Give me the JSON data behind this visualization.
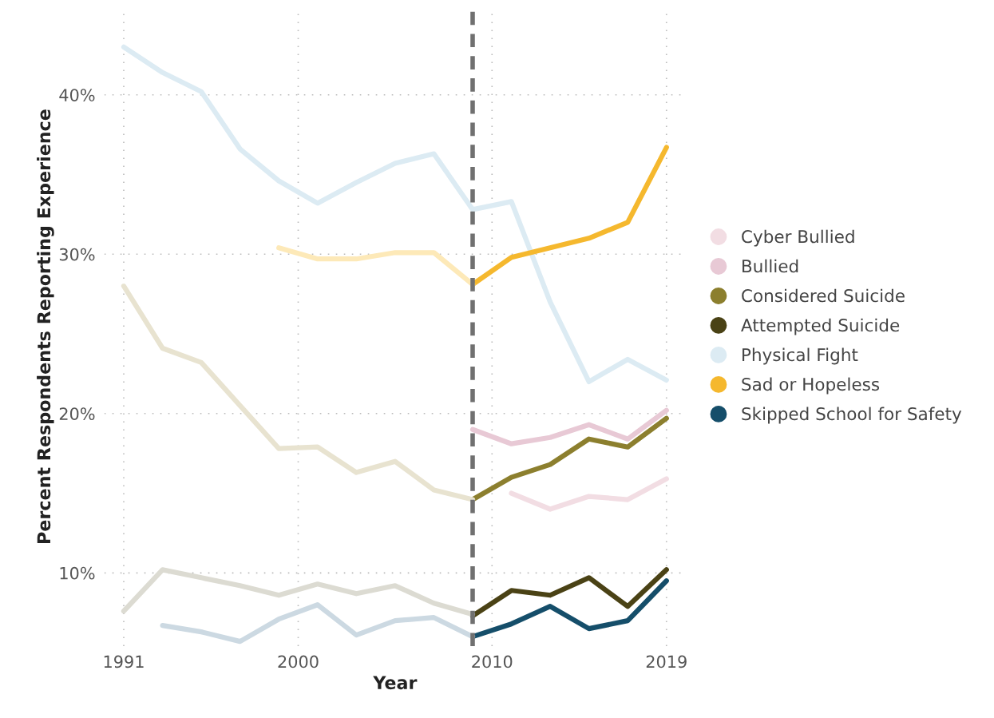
{
  "chart_data": {
    "type": "line",
    "xlabel": "Year",
    "ylabel": "Percent Respondents Reporting Experience",
    "series": [
      {
        "name": "Cyber Bullied",
        "color": "#f2dde3",
        "x": [
          2011,
          2013,
          2015,
          2017,
          2019
        ],
        "values": [
          15.0,
          14.0,
          14.8,
          14.6,
          15.9
        ]
      },
      {
        "name": "Bullied",
        "color": "#e8c9d5",
        "x": [
          2009,
          2011,
          2013,
          2015,
          2017,
          2019
        ],
        "values": [
          19.0,
          18.1,
          18.5,
          19.3,
          18.4,
          20.2
        ]
      },
      {
        "name": "Considered Suicide",
        "color": "#8c7f2e",
        "x": [
          2009,
          2011,
          2013,
          2015,
          2017,
          2019
        ],
        "values": [
          14.6,
          16.0,
          16.8,
          18.4,
          17.9,
          19.7
        ]
      },
      {
        "name": "Attempted Suicide",
        "color": "#4a4215",
        "x": [
          2009,
          2011,
          2013,
          2015,
          2017,
          2019
        ],
        "values": [
          7.3,
          8.9,
          8.6,
          9.7,
          7.9,
          10.2
        ]
      },
      {
        "name": "Physical Fight",
        "color": "#dcebf3",
        "x": [
          1991,
          1993,
          1995,
          1997,
          1999,
          2001,
          2003,
          2005,
          2007,
          2009,
          2011,
          2013,
          2015,
          2017,
          2019
        ],
        "values": [
          43.0,
          41.4,
          40.2,
          36.6,
          34.6,
          33.2,
          34.5,
          35.7,
          36.3,
          32.8,
          33.3,
          27.0,
          22.0,
          23.4,
          22.1
        ]
      },
      {
        "name": "Sad or Hopeless",
        "color": "#f5b82e",
        "x": [
          2009,
          2011,
          2013,
          2015,
          2017,
          2019
        ],
        "values": [
          28.1,
          29.8,
          30.4,
          31.0,
          32.0,
          36.7
        ]
      },
      {
        "name": "Skipped School for Safety",
        "color": "#154e6a",
        "x": [
          2009,
          2011,
          2013,
          2015,
          2017,
          2019
        ],
        "values": [
          6.0,
          6.8,
          7.9,
          6.5,
          7.0,
          9.5
        ]
      },
      {
        "color": "#e8e3d0",
        "x": [
          1991,
          1993,
          1995,
          1997,
          1999,
          2001,
          2003,
          2005,
          2007,
          2009
        ],
        "values": [
          28.0,
          24.1,
          23.2,
          20.5,
          17.8,
          17.9,
          16.3,
          17.0,
          15.2,
          14.6
        ]
      },
      {
        "color": "#dcdbd2",
        "x": [
          1991,
          1993,
          1995,
          1997,
          1999,
          2001,
          2003,
          2005,
          2007,
          2009
        ],
        "values": [
          7.6,
          10.2,
          9.7,
          9.2,
          8.6,
          9.3,
          8.7,
          9.2,
          8.1,
          7.4
        ]
      },
      {
        "color": "#fde9b8",
        "x": [
          1999,
          2001,
          2003,
          2005,
          2007,
          2009
        ],
        "values": [
          30.4,
          29.7,
          29.7,
          30.1,
          30.1,
          28.1
        ]
      },
      {
        "color": "#ccd9e2",
        "x": [
          1993,
          1995,
          1997,
          1999,
          2001,
          2003,
          2005,
          2007,
          2009
        ],
        "values": [
          6.7,
          6.3,
          5.7,
          7.1,
          8.0,
          6.1,
          7.0,
          7.2,
          6.0
        ]
      }
    ],
    "xlim": [
      1990,
      2020
    ],
    "xticks": [
      1991,
      2000,
      2010,
      2019
    ],
    "ylim": [
      5.4,
      45.5
    ],
    "yticks": [
      {
        "value": 10,
        "label": "10%"
      },
      {
        "value": 20,
        "label": "20%"
      },
      {
        "value": 30,
        "label": "30%"
      },
      {
        "value": 40,
        "label": "40%"
      }
    ],
    "ref_lines": [
      {
        "axis": "x",
        "value": 2009,
        "color": "#707070",
        "line_style": "dashed"
      }
    ],
    "grid": true,
    "legend": "right",
    "marker": "none",
    "line_style": "solid"
  }
}
